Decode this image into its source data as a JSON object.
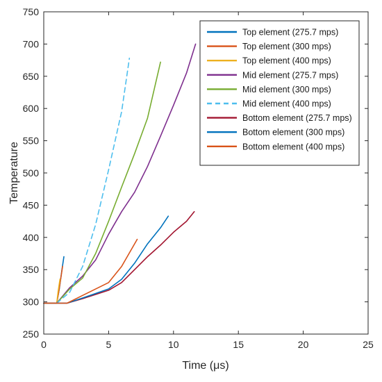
{
  "chart_data": {
    "type": "line",
    "title": "",
    "xlabel": "Time (μs)",
    "ylabel": "Temperature",
    "xlim": [
      0,
      25
    ],
    "ylim": [
      250,
      750
    ],
    "xticks": [
      0,
      5,
      10,
      15,
      20,
      25
    ],
    "yticks": [
      250,
      300,
      350,
      400,
      450,
      500,
      550,
      600,
      650,
      700,
      750
    ],
    "grid": false,
    "legend_position": "top-right",
    "series": [
      {
        "name": "Top element (275.7 mps)",
        "color": "#0072BD",
        "dash": "solid",
        "x": [
          0,
          1.0,
          1.2,
          1.4,
          1.55
        ],
        "y": [
          298,
          298,
          320,
          350,
          370
        ]
      },
      {
        "name": "Top element (300 mps)",
        "color": "#D95319",
        "dash": "solid",
        "x": [
          0,
          1.0,
          1.15,
          1.3,
          1.45
        ],
        "y": [
          298,
          298,
          315,
          335,
          355
        ]
      },
      {
        "name": "Top element (400 mps)",
        "color": "#EDB120",
        "dash": "solid",
        "x": [
          0,
          1.0,
          1.1,
          1.25
        ],
        "y": [
          298,
          298,
          315,
          335
        ]
      },
      {
        "name": "Mid element (275.7 mps)",
        "color": "#7E2F8E",
        "dash": "solid",
        "x": [
          1.0,
          2.0,
          3.0,
          4.0,
          5.0,
          6.0,
          7.0,
          8.0,
          9.0,
          10.0,
          11.0,
          11.7
        ],
        "y": [
          298,
          322,
          340,
          365,
          405,
          440,
          470,
          510,
          557,
          605,
          655,
          700
        ]
      },
      {
        "name": "Mid element (300 mps)",
        "color": "#77AC30",
        "dash": "solid",
        "x": [
          1.0,
          2.0,
          3.0,
          4.0,
          5.0,
          6.0,
          7.0,
          8.0,
          9.0
        ],
        "y": [
          298,
          320,
          337,
          375,
          425,
          478,
          530,
          585,
          672
        ]
      },
      {
        "name": "Mid element (400 mps)",
        "color": "#4DBEEE",
        "dash": "dashed",
        "x": [
          1.0,
          2.0,
          3.0,
          4.0,
          5.0,
          6.0,
          6.6
        ],
        "y": [
          298,
          315,
          355,
          420,
          505,
          595,
          678
        ]
      },
      {
        "name": "Bottom element (275.7 mps)",
        "color": "#A2142F",
        "dash": "solid",
        "x": [
          0,
          1.8,
          3.0,
          5.0,
          6.0,
          7.0,
          8.0,
          9.0,
          10.0,
          11.0,
          11.6
        ],
        "y": [
          298,
          298,
          305,
          318,
          330,
          350,
          370,
          388,
          408,
          425,
          440
        ]
      },
      {
        "name": "Bottom element (300 mps)",
        "color": "#0072BD",
        "dash": "solid",
        "x": [
          0,
          1.8,
          3.0,
          5.0,
          6.0,
          7.0,
          8.0,
          9.0,
          9.6
        ],
        "y": [
          298,
          298,
          306,
          320,
          335,
          360,
          390,
          415,
          433
        ]
      },
      {
        "name": "Bottom element (400 mps)",
        "color": "#D95319",
        "dash": "solid",
        "x": [
          0,
          1.8,
          3.0,
          5.0,
          6.0,
          7.2
        ],
        "y": [
          298,
          298,
          310,
          330,
          355,
          397
        ]
      }
    ]
  }
}
